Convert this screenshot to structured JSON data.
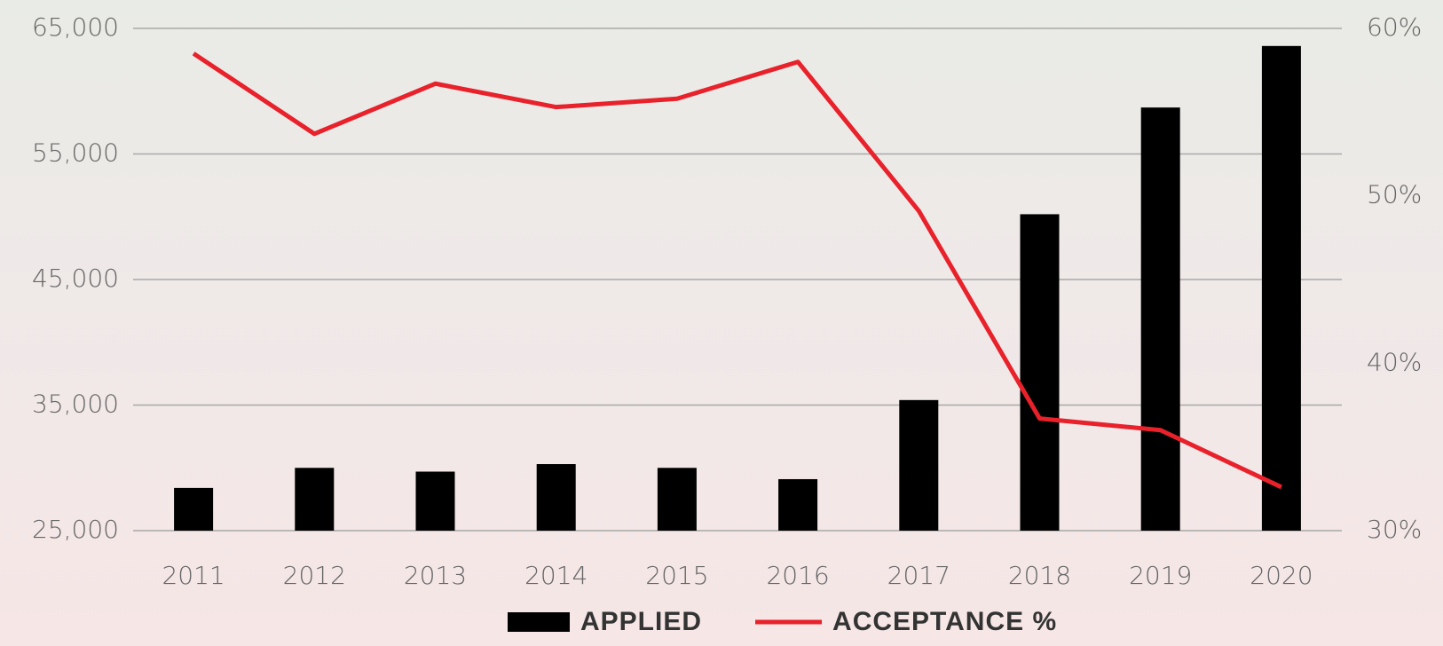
{
  "chart_data": {
    "type": "bar",
    "categories": [
      "2011",
      "2012",
      "2013",
      "2014",
      "2015",
      "2016",
      "2017",
      "2018",
      "2019",
      "2020"
    ],
    "series": [
      {
        "name": "APPLIED",
        "type": "bar",
        "color": "#000000",
        "values": [
          28400,
          30000,
          29700,
          30300,
          30000,
          29100,
          35400,
          50200,
          58700,
          63600
        ]
      },
      {
        "name": "ACCEPTANCE %",
        "type": "line",
        "axis": "y2",
        "color": "#e8212b",
        "values": [
          58.5,
          53.7,
          56.7,
          55.3,
          55.8,
          58.0,
          49.1,
          36.7,
          36.0,
          32.6
        ]
      }
    ],
    "ylim": [
      25000,
      65000
    ],
    "yticks": [
      {
        "value": 25000,
        "label": "25,000"
      },
      {
        "value": 35000,
        "label": "35,000"
      },
      {
        "value": 45000,
        "label": "45,000"
      },
      {
        "value": 55000,
        "label": "55,000"
      },
      {
        "value": 65000,
        "label": "65,000"
      }
    ],
    "y2lim": [
      30,
      60
    ],
    "y2ticks": [
      {
        "value": 30,
        "label": "30%"
      },
      {
        "value": 40,
        "label": "40%"
      },
      {
        "value": 50,
        "label": "50%"
      },
      {
        "value": 60,
        "label": "60%"
      }
    ],
    "grid": true
  }
}
